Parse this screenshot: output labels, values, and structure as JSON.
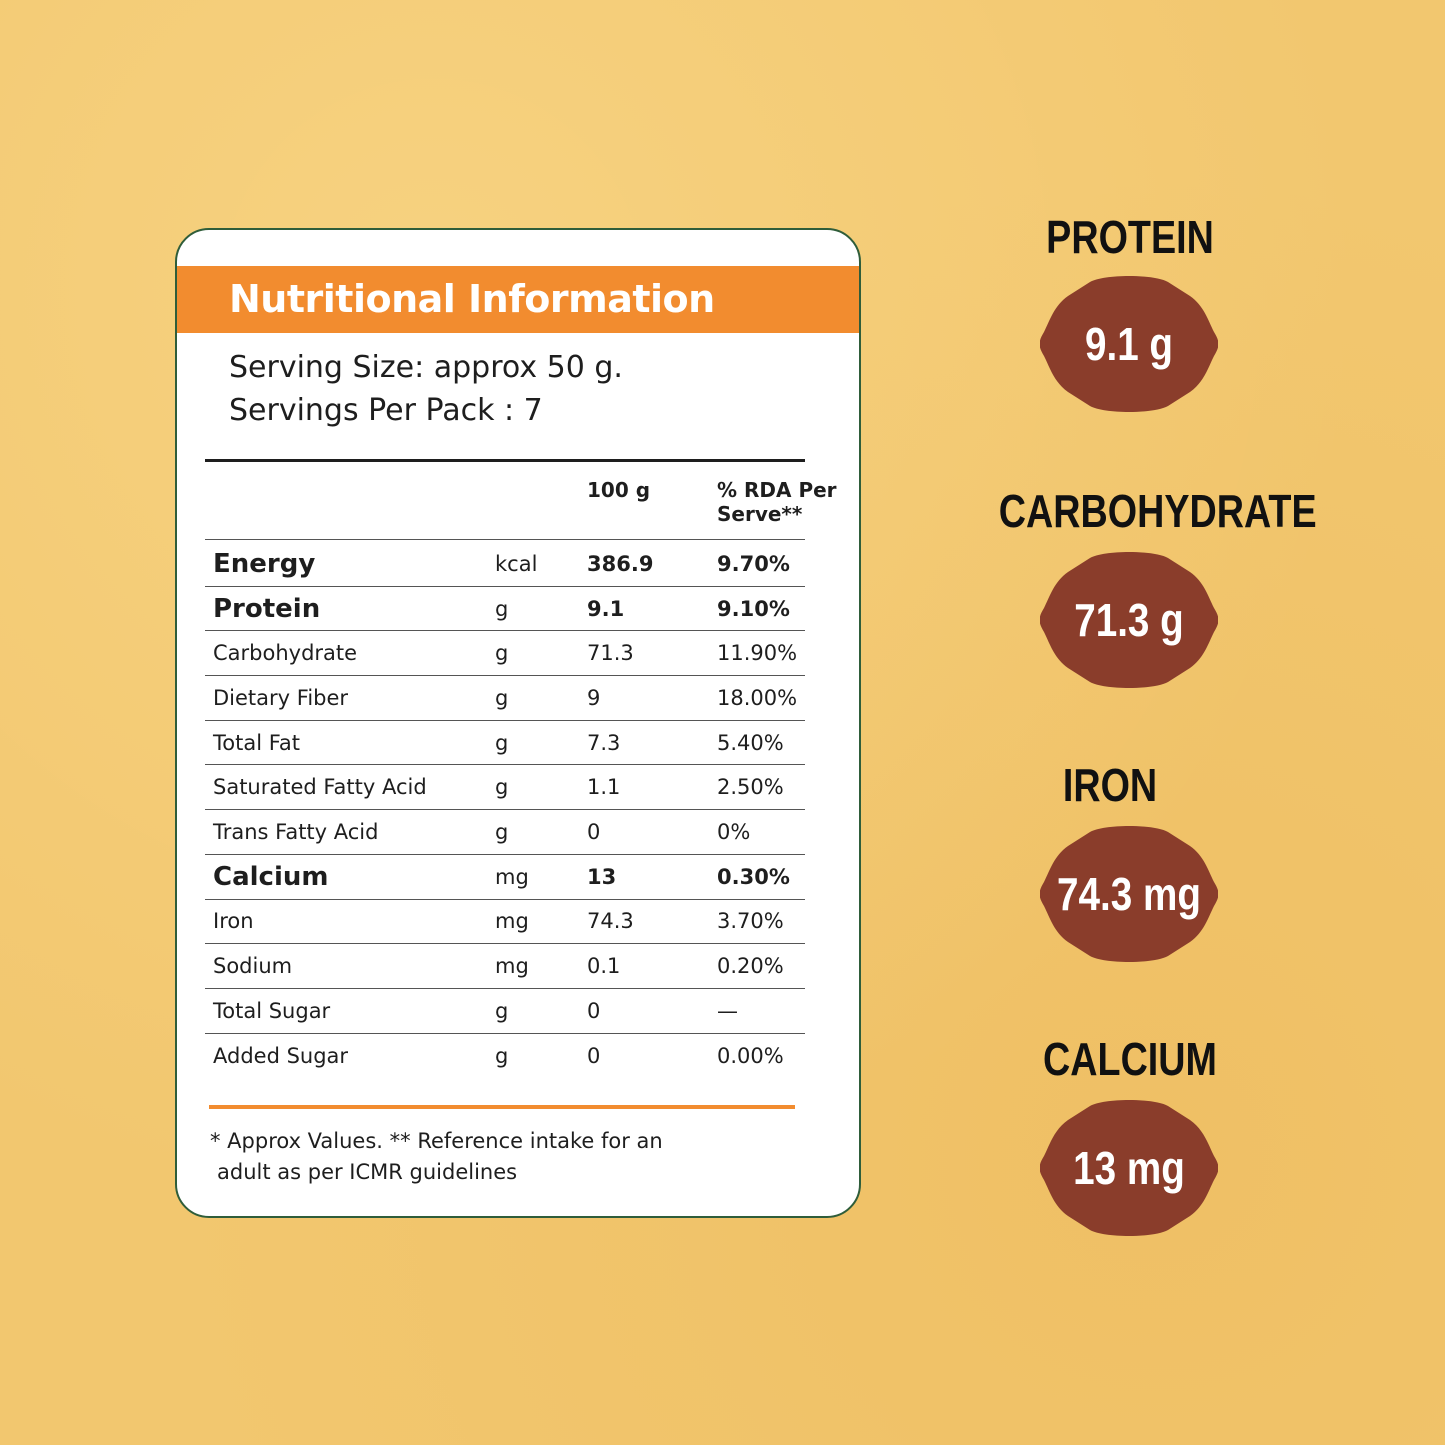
{
  "card": {
    "title": "Nutritional Information",
    "serving_size": "Serving Size: approx 50 g.",
    "servings_per_pack": "Servings Per Pack : 7",
    "columns": {
      "per_100g": "100 g",
      "rda": "% RDA Per Serve**"
    },
    "rows": [
      {
        "name": "Energy",
        "unit": "kcal",
        "value": "386.9",
        "rda": "9.70%",
        "bold": true
      },
      {
        "name": "Protein",
        "unit": "g",
        "value": "9.1",
        "rda": "9.10%",
        "bold": true
      },
      {
        "name": "Carbohydrate",
        "unit": "g",
        "value": "71.3",
        "rda": "11.90%",
        "bold": false
      },
      {
        "name": "Dietary Fiber",
        "unit": "g",
        "value": "9",
        "rda": "18.00%",
        "bold": false
      },
      {
        "name": "Total Fat",
        "unit": "g",
        "value": "7.3",
        "rda": "5.40%",
        "bold": false
      },
      {
        "name": "Saturated Fatty Acid",
        "unit": "g",
        "value": "1.1",
        "rda": "2.50%",
        "bold": false
      },
      {
        "name": "Trans Fatty Acid",
        "unit": "g",
        "value": "0",
        "rda": "0%",
        "bold": false
      },
      {
        "name": "Calcium",
        "unit": "mg",
        "value": "13",
        "rda": "0.30%",
        "bold": true
      },
      {
        "name": "Iron",
        "unit": "mg",
        "value": "74.3",
        "rda": "3.70%",
        "bold": false
      },
      {
        "name": "Sodium",
        "unit": "mg",
        "value": "0.1",
        "rda": "0.20%",
        "bold": false
      },
      {
        "name": "Total Sugar",
        "unit": "g",
        "value": "0",
        "rda": "—",
        "bold": false
      },
      {
        "name": "Added Sugar",
        "unit": "g",
        "value": "0",
        "rda": "0.00%",
        "bold": false
      }
    ],
    "footnote_line1": "* Approx Values. ** Reference intake for an",
    "footnote_line2": "adult as per ICMR guidelines"
  },
  "highlights": [
    {
      "label": "PROTEIN",
      "value": "9.1 g"
    },
    {
      "label": "CARBOHYDRATE",
      "value": "71.3 g"
    },
    {
      "label": "IRON",
      "value": "74.3 mg"
    },
    {
      "label": "CALCIUM",
      "value": "13 mg"
    }
  ],
  "colors": {
    "background": "#f2c76f",
    "header_orange": "#f28c2f",
    "badge_brown": "#8a3d2b",
    "card_border": "#2f5d3a"
  }
}
